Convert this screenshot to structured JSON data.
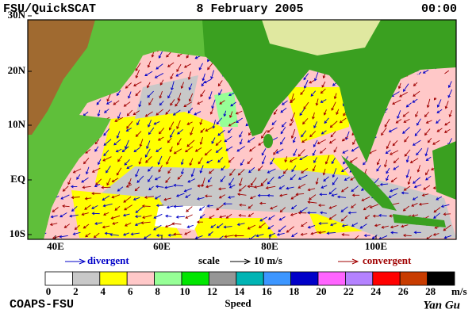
{
  "header": {
    "title": "FSU/QuickSCAT",
    "date": "8 February 2005",
    "time": "00:00"
  },
  "map": {
    "lat_labels": [
      "30N",
      "20N",
      "10N",
      "EQ",
      "10S"
    ],
    "lon_labels": [
      "40E",
      "60E",
      "80E",
      "100E"
    ]
  },
  "legend": {
    "divergent": "divergent",
    "scale": "scale",
    "scale_value": "10 m/s",
    "convergent": "convergent"
  },
  "colorbar": {
    "ticks": [
      0,
      2,
      4,
      6,
      8,
      10,
      12,
      14,
      16,
      18,
      20,
      22,
      24,
      26,
      28
    ],
    "unit": "m/s",
    "label": "Speed",
    "colors": [
      "#ffffff",
      "#c8c8c8",
      "#ffff00",
      "#ffc8c8",
      "#96ff96",
      "#00e600",
      "#969696",
      "#00b4b4",
      "#3c96ff",
      "#0000c8",
      "#ff64ff",
      "#b482ff",
      "#ff0000",
      "#c83c00",
      "#000000"
    ]
  },
  "footer": {
    "left": "COAPS-FSU",
    "right": "Yan Gu"
  }
}
